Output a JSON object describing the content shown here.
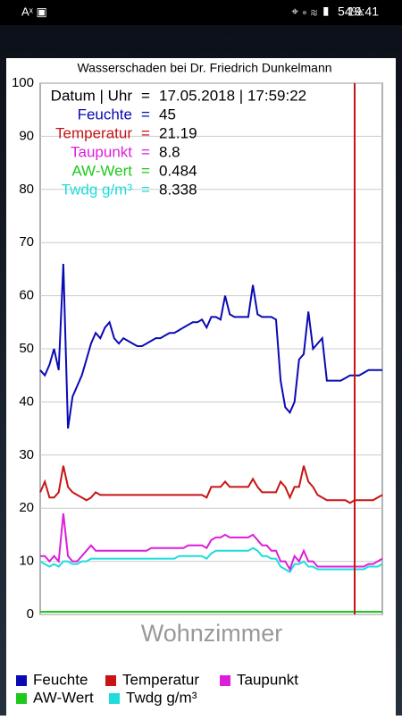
{
  "status_bar": {
    "battery": "54%",
    "time": "19:41"
  },
  "chart_data": {
    "type": "line",
    "title": "Wasserschaden bei Dr. Friedrich Dunkelmann",
    "subtitle": "Wohnzimmer",
    "ylim": [
      0,
      100
    ],
    "yticks": [
      0,
      10,
      20,
      30,
      40,
      50,
      60,
      70,
      80,
      90,
      100
    ],
    "grid": true,
    "cursor_info": {
      "date_label": "Datum | Uhr",
      "date": "17.05.2018 | 17:59:22",
      "separator": "=",
      "values": [
        45,
        21.19,
        8.8,
        0.484,
        8.338
      ]
    },
    "series": [
      {
        "name": "Feuchte",
        "color": "#0a0ab4",
        "values": [
          46,
          45,
          47,
          50,
          46,
          66,
          35,
          41,
          43,
          45,
          48,
          51,
          53,
          52,
          54,
          55,
          52,
          51,
          52,
          51.5,
          51,
          50.5,
          50.5,
          51,
          51.5,
          52,
          52,
          52.5,
          53,
          53,
          53.5,
          54,
          54.5,
          55,
          55,
          55.5,
          54,
          56,
          56,
          55.5,
          60,
          56.5,
          56,
          56,
          56,
          56,
          62,
          56.5,
          56,
          56,
          56,
          55.5,
          44,
          39,
          38,
          40,
          48,
          49,
          57,
          50,
          51,
          52,
          44,
          44,
          44,
          44,
          44.5,
          45,
          45,
          45,
          45.5,
          46,
          46,
          46,
          46
        ]
      },
      {
        "name": "Temperatur",
        "color": "#c81414",
        "values": [
          23,
          25,
          22,
          22,
          23,
          28,
          24,
          23,
          22.5,
          22,
          21.5,
          22,
          23,
          22.5,
          22.5,
          22.5,
          22.5,
          22.5,
          22.5,
          22.5,
          22.5,
          22.5,
          22.5,
          22.5,
          22.5,
          22.5,
          22.5,
          22.5,
          22.5,
          22.5,
          22.5,
          22.5,
          22.5,
          22.5,
          22.5,
          22.5,
          22,
          24,
          24,
          24,
          25,
          24,
          24,
          24,
          24,
          24,
          25.5,
          24,
          23,
          23,
          23,
          23,
          25,
          24,
          22,
          24,
          24,
          28,
          25,
          24,
          22.5,
          22,
          21.5,
          21.5,
          21.5,
          21.5,
          21.5,
          21,
          21.5,
          21.5,
          21.5,
          21.5,
          21.5,
          22,
          22.5
        ]
      },
      {
        "name": "Taupunkt",
        "color": "#dc1edc",
        "values": [
          11,
          11,
          10,
          11,
          10,
          19,
          11,
          10,
          10,
          11,
          12,
          13,
          12,
          12,
          12,
          12,
          12,
          12,
          12,
          12,
          12,
          12,
          12,
          12,
          12.5,
          12.5,
          12.5,
          12.5,
          12.5,
          12.5,
          12.5,
          12.5,
          13,
          13,
          13,
          13,
          12.5,
          14,
          14.5,
          14.5,
          15,
          14.5,
          14.5,
          14.5,
          14.5,
          14.5,
          15,
          14,
          13,
          13,
          12,
          12,
          10,
          10,
          8.5,
          11,
          10,
          12,
          10,
          10,
          9,
          9,
          9,
          9,
          9,
          9,
          9,
          9,
          9,
          9,
          9,
          9.5,
          9.5,
          10,
          10.5
        ]
      },
      {
        "name": "AW-Wert",
        "color": "#1ec81e",
        "values": [
          0.5,
          0.5,
          0.5,
          0.5,
          0.5,
          0.5,
          0.5,
          0.5,
          0.5,
          0.5,
          0.5,
          0.5,
          0.5,
          0.5,
          0.5,
          0.5,
          0.5,
          0.5,
          0.5,
          0.5,
          0.5,
          0.5,
          0.5,
          0.5,
          0.5,
          0.5,
          0.5,
          0.5,
          0.5,
          0.5,
          0.5,
          0.5,
          0.5,
          0.5,
          0.5,
          0.5,
          0.5,
          0.5,
          0.5,
          0.5,
          0.5,
          0.5,
          0.5,
          0.5,
          0.5,
          0.5,
          0.5,
          0.5,
          0.5,
          0.5,
          0.5,
          0.5,
          0.5,
          0.5,
          0.5,
          0.5,
          0.5,
          0.5,
          0.5,
          0.5,
          0.5,
          0.5,
          0.5,
          0.5,
          0.5,
          0.5,
          0.5,
          0.5,
          0.5,
          0.5,
          0.5,
          0.5,
          0.5,
          0.5,
          0.5
        ]
      },
      {
        "name": "Twdg g/m³",
        "color": "#1edcdc",
        "values": [
          10,
          9.5,
          9,
          9.5,
          9,
          10,
          10,
          9.5,
          9.5,
          10,
          10,
          10.5,
          10.5,
          10.5,
          10.5,
          10.5,
          10.5,
          10.5,
          10.5,
          10.5,
          10.5,
          10.5,
          10.5,
          10.5,
          10.5,
          10.5,
          10.5,
          10.5,
          10.5,
          10.5,
          11,
          11,
          11,
          11,
          11,
          11,
          10.5,
          11.5,
          12,
          12,
          12,
          12,
          12,
          12,
          12,
          12,
          12.5,
          12,
          11,
          11,
          10.5,
          10.5,
          9,
          8.5,
          8,
          9.5,
          9.5,
          10,
          9,
          9,
          8.5,
          8.5,
          8.5,
          8.5,
          8.5,
          8.5,
          8.5,
          8.5,
          8.5,
          8.5,
          8.5,
          9,
          9,
          9,
          9.5
        ]
      }
    ]
  }
}
